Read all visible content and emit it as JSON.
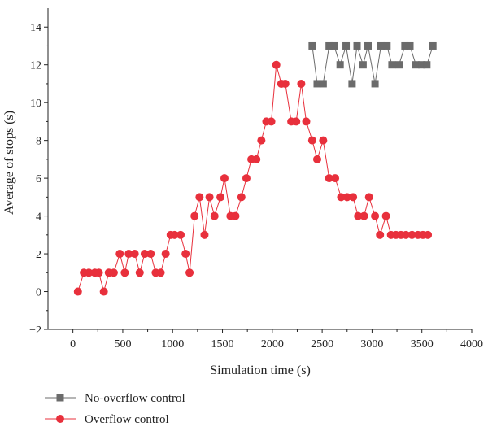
{
  "chart_data": {
    "type": "line",
    "title": "",
    "xlabel": "Simulation time (s)",
    "ylabel": "Average of stops (s)",
    "xlim": [
      -250,
      4000
    ],
    "ylim": [
      -2,
      15
    ],
    "xticks": [
      0,
      500,
      1000,
      1500,
      2000,
      2500,
      3000,
      3500,
      4000
    ],
    "yticks": [
      -2,
      0,
      2,
      4,
      6,
      8,
      10,
      12,
      14
    ],
    "grid": false,
    "legend_position": "bottom-left",
    "series": [
      {
        "name": "No-overflow control",
        "color": "#6b6b6b",
        "marker": "square",
        "x": [
          2400,
          2450,
          2510,
          2570,
          2620,
          2680,
          2740,
          2800,
          2850,
          2910,
          2960,
          3030,
          3090,
          3150,
          3200,
          3270,
          3330,
          3380,
          3440,
          3500,
          3550,
          3610
        ],
        "values": [
          13,
          11,
          11,
          13,
          13,
          12,
          13,
          11,
          13,
          12,
          13,
          11,
          13,
          13,
          12,
          12,
          13,
          13,
          12,
          12,
          12,
          13
        ]
      },
      {
        "name": "Overflow control",
        "color": "#e8303c",
        "marker": "circle",
        "x": [
          50,
          110,
          160,
          220,
          260,
          310,
          360,
          410,
          470,
          520,
          560,
          620,
          670,
          720,
          780,
          830,
          880,
          930,
          980,
          1020,
          1080,
          1130,
          1170,
          1220,
          1270,
          1320,
          1370,
          1420,
          1480,
          1520,
          1580,
          1630,
          1690,
          1740,
          1790,
          1840,
          1890,
          1940,
          1990,
          2040,
          2090,
          2130,
          2190,
          2240,
          2290,
          2340,
          2400,
          2450,
          2510,
          2570,
          2630,
          2690,
          2750,
          2810,
          2860,
          2920,
          2970,
          3030,
          3080,
          3140,
          3190,
          3240,
          3290,
          3340,
          3400,
          3460,
          3510,
          3560
        ],
        "values": [
          0,
          1,
          1,
          1,
          1,
          0,
          1,
          1,
          2,
          1,
          2,
          2,
          1,
          2,
          2,
          1,
          1,
          2,
          3,
          3,
          3,
          2,
          1,
          4,
          5,
          3,
          5,
          4,
          5,
          6,
          4,
          4,
          5,
          6,
          7,
          7,
          8,
          9,
          9,
          12,
          11,
          11,
          9,
          9,
          11,
          9,
          8,
          7,
          8,
          6,
          6,
          5,
          5,
          5,
          4,
          4,
          5,
          4,
          3,
          4,
          3,
          3,
          3,
          3,
          3,
          3,
          3,
          3
        ]
      }
    ]
  }
}
